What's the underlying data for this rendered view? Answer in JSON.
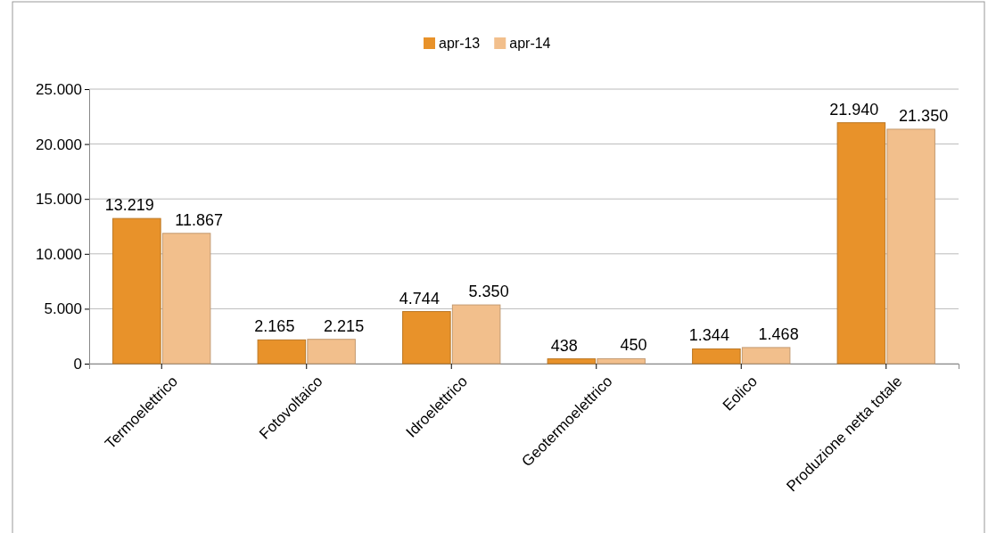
{
  "chart_data": {
    "type": "bar",
    "categories": [
      "Termoelettrico",
      "Fotovoltaico",
      "Idroelettrico",
      "Geotermoelettrico",
      "Eolico",
      "Produzione netta totale"
    ],
    "series": [
      {
        "name": "apr-13",
        "color": "#e8922a",
        "values": [
          13219,
          2165,
          4744,
          438,
          1344,
          21940
        ],
        "value_labels": [
          "13.219",
          "2.165",
          "4.744",
          "438",
          "1.344",
          "21.940"
        ]
      },
      {
        "name": "apr-14",
        "color": "#f2bf8c",
        "values": [
          11867,
          2215,
          5350,
          450,
          1468,
          21350
        ],
        "value_labels": [
          "11.867",
          "2.215",
          "5.350",
          "450",
          "1.468",
          "21.350"
        ]
      }
    ],
    "ylim": [
      0,
      25000
    ],
    "yticks": [
      {
        "value": 0,
        "label": "0"
      },
      {
        "value": 5000,
        "label": "5.000"
      },
      {
        "value": 10000,
        "label": "10.000"
      },
      {
        "value": 15000,
        "label": "15.000"
      },
      {
        "value": 20000,
        "label": "20.000"
      },
      {
        "value": 25000,
        "label": "25.000"
      }
    ],
    "grid": "y",
    "legend": "top"
  }
}
